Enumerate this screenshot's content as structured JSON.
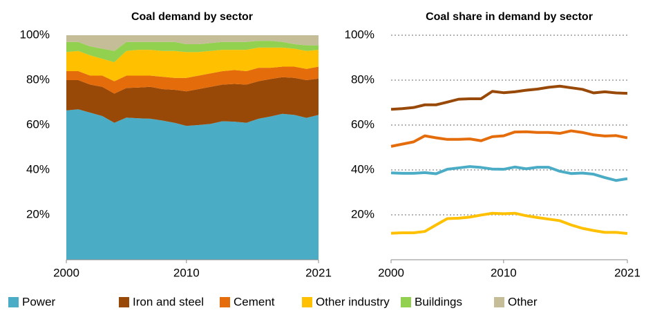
{
  "chart_data": [
    {
      "type": "stacked_area",
      "title": "Coal demand by sector",
      "x": [
        2000,
        2001,
        2002,
        2003,
        2004,
        2005,
        2006,
        2007,
        2008,
        2009,
        2010,
        2011,
        2012,
        2013,
        2014,
        2015,
        2016,
        2017,
        2018,
        2019,
        2020,
        2021
      ],
      "xlim": [
        2000,
        2021
      ],
      "xticks": [
        2000,
        2010,
        2021
      ],
      "ylim": [
        0,
        100
      ],
      "yticks": [
        {
          "value": 20,
          "label": "20%"
        },
        {
          "value": 40,
          "label": "40%"
        },
        {
          "value": 60,
          "label": "60%"
        },
        {
          "value": 80,
          "label": "80%"
        },
        {
          "value": 100,
          "label": "100%"
        }
      ],
      "grid": false,
      "series": [
        {
          "name": "Power",
          "color": "#4bacc6",
          "values": [
            66.5,
            67,
            65.5,
            64,
            61,
            63.3,
            63,
            62.8,
            62,
            61,
            59.6,
            60,
            60.5,
            61.7,
            61.5,
            61,
            62.8,
            63.8,
            65,
            64.5,
            63.2,
            64.5
          ]
        },
        {
          "name": "Iron and steel",
          "color": "#984807",
          "values": [
            13.5,
            13,
            12.5,
            13,
            13,
            13.2,
            13.7,
            14.2,
            14,
            14.7,
            15.4,
            16,
            16.5,
            16.3,
            16.8,
            17,
            16.7,
            16.7,
            16.3,
            16.5,
            16.8,
            16.2
          ]
        },
        {
          "name": "Cement",
          "color": "#e46c0a",
          "values": [
            4,
            4,
            4,
            5,
            5.5,
            5.5,
            5.3,
            5,
            5.5,
            5.3,
            6,
            6,
            6,
            6,
            6.2,
            6,
            6,
            5,
            4.7,
            5,
            5,
            5.3
          ]
        },
        {
          "name": "Other industry",
          "color": "#ffc000",
          "values": [
            8.5,
            9,
            9,
            7.5,
            8.5,
            11,
            11.5,
            11.5,
            11.5,
            12,
            11.5,
            10.5,
            10,
            9.5,
            9,
            9.5,
            9,
            9,
            8.5,
            8,
            8,
            7.5
          ]
        },
        {
          "name": "Buildings",
          "color": "#92d050",
          "values": [
            4.5,
            4,
            4,
            4.5,
            5,
            4,
            3.5,
            3.5,
            4,
            4,
            3.5,
            3.5,
            3.5,
            3.5,
            3.5,
            3.5,
            3,
            3,
            2.5,
            2,
            2.5,
            2
          ]
        },
        {
          "name": "Other",
          "color": "#c4bd97",
          "values": [
            3,
            3,
            5,
            6,
            7,
            3,
            3,
            3,
            3,
            3,
            4,
            4,
            3.5,
            3,
            3,
            3,
            2.5,
            2.5,
            3,
            4,
            4.5,
            4.5
          ]
        }
      ]
    },
    {
      "type": "line",
      "title": "Coal share in demand by sector",
      "x": [
        2000,
        2001,
        2002,
        2003,
        2004,
        2005,
        2006,
        2007,
        2008,
        2009,
        2010,
        2011,
        2012,
        2013,
        2014,
        2015,
        2016,
        2017,
        2018,
        2019,
        2020,
        2021
      ],
      "xlim": [
        2000,
        2021
      ],
      "xticks": [
        2000,
        2010,
        2021
      ],
      "ylim": [
        0,
        100
      ],
      "yticks": [
        {
          "value": 20,
          "label": "20%"
        },
        {
          "value": 40,
          "label": "40%"
        },
        {
          "value": 60,
          "label": "60%"
        },
        {
          "value": 80,
          "label": "80%"
        },
        {
          "value": 100,
          "label": "100%"
        }
      ],
      "grid": true,
      "series": [
        {
          "name": "Iron and steel",
          "color": "#984807",
          "values": [
            67,
            67.3,
            67.8,
            69,
            69,
            70.2,
            71.5,
            71.7,
            71.7,
            75,
            74.4,
            74.8,
            75.5,
            76,
            76.8,
            77.3,
            76.6,
            75.9,
            74.3,
            74.8,
            74.3,
            74.1
          ]
        },
        {
          "name": "Cement",
          "color": "#e46c0a",
          "values": [
            50.5,
            51.5,
            52.5,
            55.2,
            54.3,
            53.6,
            53.6,
            53.8,
            53,
            54.8,
            55.2,
            56.9,
            57,
            56.7,
            56.7,
            56.3,
            57.4,
            56.7,
            55.6,
            55.1,
            55.3,
            54.3
          ]
        },
        {
          "name": "Power",
          "color": "#4bacc6",
          "values": [
            38.7,
            38.5,
            38.5,
            38.8,
            38.3,
            40.3,
            40.9,
            41.5,
            41.1,
            40.4,
            40.3,
            41.3,
            40.5,
            41.2,
            41.2,
            39.4,
            38.4,
            38.6,
            38.1,
            36.6,
            35.3,
            36.1
          ]
        },
        {
          "name": "Other industry",
          "color": "#ffc000",
          "values": [
            11.8,
            12,
            12,
            12.6,
            15.5,
            18.3,
            18.5,
            19,
            19.9,
            20.7,
            20.5,
            20.7,
            19.6,
            18.8,
            18.1,
            17.4,
            15.5,
            14,
            13,
            12.2,
            12.2,
            11.7
          ]
        }
      ]
    }
  ]
}
